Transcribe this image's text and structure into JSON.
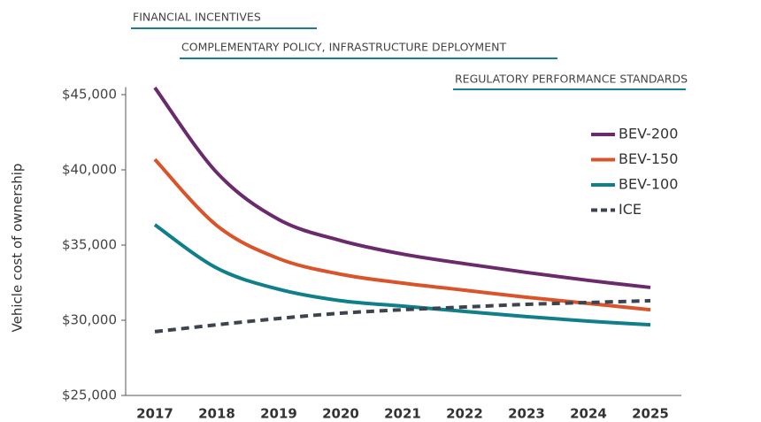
{
  "chart_data": {
    "type": "line",
    "y_label": "Vehicle cost of ownership",
    "annotations": [
      "FINANCIAL INCENTIVES",
      "COMPLEMENTARY POLICY, INFRASTRUCTURE DEPLOYMENT",
      "REGULATORY PERFORMANCE STANDARDS"
    ],
    "annotation_color": "#17808c",
    "categories": [
      "2017",
      "2018",
      "2019",
      "2020",
      "2021",
      "2022",
      "2023",
      "2024",
      "2025"
    ],
    "series": [
      {
        "name": "BEV-200",
        "color": "#6b2a6b",
        "linestyle": "solid",
        "values": [
          45470,
          39820,
          36700,
          35300,
          34400,
          33760,
          33180,
          32650,
          32180
        ]
      },
      {
        "name": "BEV-150",
        "color": "#d9532b",
        "linestyle": "solid",
        "values": [
          40700,
          36300,
          34100,
          33060,
          32470,
          32000,
          31530,
          31120,
          30700
        ]
      },
      {
        "name": "BEV-100",
        "color": "#0f7f8a",
        "linestyle": "solid",
        "values": [
          36350,
          33470,
          32060,
          31300,
          30940,
          30590,
          30240,
          29940,
          29700
        ]
      },
      {
        "name": "ICE",
        "color": "#3d4450",
        "linestyle": "dashed",
        "values": [
          29240,
          29700,
          30120,
          30470,
          30700,
          30880,
          31060,
          31180,
          31300
        ]
      }
    ],
    "ylim": [
      25000,
      45500
    ],
    "yticks": [
      {
        "value": 25000,
        "label": "$25,000"
      },
      {
        "value": 30000,
        "label": "$30,000"
      },
      {
        "value": 35000,
        "label": "$35,000"
      },
      {
        "value": 40000,
        "label": "$40,000"
      },
      {
        "value": 45000,
        "label": "$45,000"
      }
    ],
    "grid": false,
    "legend": "upper right"
  }
}
